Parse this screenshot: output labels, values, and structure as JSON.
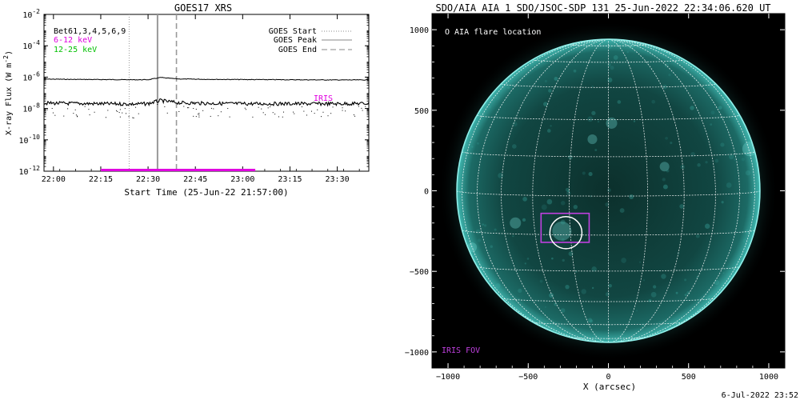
{
  "chart_data": [
    {
      "type": "line",
      "title": "GOES17 XRS",
      "xlabel": "Start Time (25-Jun-22 21:57:00)",
      "ylabel": "X-ray Flux (W m",
      "ylabel_sup": "-2",
      "ylabel_end": ")",
      "y_scale": "log",
      "ylim": [
        1e-12,
        0.01
      ],
      "xlim": [
        "21:57",
        "23:40"
      ],
      "x_ticks": [
        "22:00",
        "22:15",
        "22:30",
        "22:45",
        "23:00",
        "23:15",
        "23:30"
      ],
      "y_ticks": [
        {
          "base": "10",
          "exp": "-12",
          "value": 1e-12
        },
        {
          "base": "10",
          "exp": "-10",
          "value": 1e-10
        },
        {
          "base": "10",
          "exp": "-8",
          "value": 1e-08
        },
        {
          "base": "10",
          "exp": "-6",
          "value": 1e-06
        },
        {
          "base": "10",
          "exp": "-4",
          "value": 0.0001
        },
        {
          "base": "10",
          "exp": "-2",
          "value": 0.01
        }
      ],
      "legend_left": [
        {
          "label": "Bet61,3,4,5,6,9",
          "color": "#000000"
        },
        {
          "label": "6-12 keV",
          "color": "#e000e0"
        },
        {
          "label": "12-25 keV",
          "color": "#00c000"
        }
      ],
      "legend_right": [
        {
          "label": "GOES Start",
          "style": "dotted"
        },
        {
          "label": "GOES Peak",
          "style": "solid"
        },
        {
          "label": "GOES End",
          "style": "dashed"
        }
      ],
      "events": {
        "start": "22:24",
        "peak": "22:33",
        "end": "22:39"
      },
      "iris": {
        "label": "IRIS",
        "start": "22:15",
        "end": "23:04",
        "level": 1.2e-12
      },
      "series": [
        {
          "color": "#000000",
          "x": [
            "21:57",
            "22:05",
            "22:15",
            "22:25",
            "22:30",
            "22:32",
            "22:34",
            "22:36",
            "22:40",
            "22:50",
            "23:00",
            "23:15",
            "23:30",
            "23:40"
          ],
          "values": [
            7.5e-07,
            7.2e-07,
            7e-07,
            6.8e-07,
            6.8e-07,
            8e-07,
            9.5e-07,
            8.6e-07,
            7.6e-07,
            7.2e-07,
            7e-07,
            6.8e-07,
            6.6e-07,
            6.6e-07
          ]
        },
        {
          "color": "#000000",
          "x": [
            "21:57",
            "22:05",
            "22:15",
            "22:25",
            "22:30",
            "22:32",
            "22:34",
            "22:36",
            "22:40",
            "22:50",
            "23:00",
            "23:15",
            "23:30",
            "23:40"
          ],
          "values": [
            2.2e-08,
            2.1e-08,
            2e-08,
            1.9e-08,
            2e-08,
            2.6e-08,
            3.2e-08,
            2.8e-08,
            2.3e-08,
            2.1e-08,
            2e-08,
            2e-08,
            2e-08,
            2.1e-08
          ]
        }
      ]
    },
    {
      "type": "scatter",
      "title": "SDO/AIA AIA_1 SDO/JSOC-SDP 131 25-Jun-2022 22:34:06.620 UT",
      "xlabel": "X (arcsec)",
      "ylabel": "",
      "xlim": [
        -1100,
        1100
      ],
      "ylim": [
        -1100,
        1100
      ],
      "x_ticks": [
        -1000,
        -500,
        0,
        500,
        1000
      ],
      "y_ticks": [
        -1000,
        -500,
        0,
        500,
        1000
      ],
      "x_tick_labels": [
        "−1000",
        "−500",
        "0",
        "500",
        "1000"
      ],
      "y_tick_labels": [
        "−1000",
        "−500",
        "0",
        "500",
        "1000"
      ],
      "legend": "O AIA flare location",
      "iris_label": "IRIS FOV",
      "flare_location": {
        "x": -265,
        "y": -260
      },
      "iris_fov": {
        "x0": -420,
        "x1": -120,
        "y0": -320,
        "y1": -140
      },
      "solar_radius": 945,
      "colors": {
        "disk": "#0d3733",
        "limb": "#7fe8e2",
        "grid": "#ffffff",
        "iris": "#c040e0"
      }
    }
  ],
  "footer": {
    "timestamp": "6-Jul-2022 23:52"
  }
}
